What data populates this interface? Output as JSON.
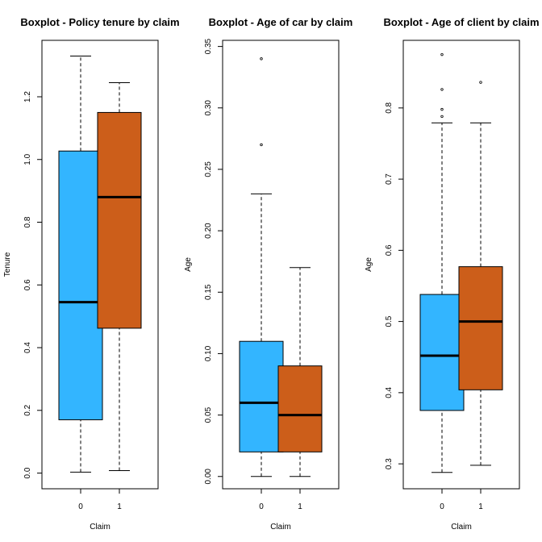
{
  "chart_data": [
    {
      "type": "boxplot",
      "title": "Boxplot - Policy tenure by claim",
      "xlabel": "Claim",
      "ylabel": "Tenure",
      "categories": [
        "0",
        "1"
      ],
      "ylim": [
        -0.05,
        1.38
      ],
      "yticks": [
        0.0,
        0.2,
        0.4,
        0.6,
        0.8,
        1.0,
        1.2
      ],
      "ytick_labels": [
        "0.0",
        "0.2",
        "0.4",
        "0.6",
        "0.8",
        "1.0",
        "1.2"
      ],
      "boxes": [
        {
          "category": "0",
          "color": "#33b5ff",
          "whisker_low": 0.003,
          "q1": 0.17,
          "median": 0.545,
          "q3": 1.027,
          "whisker_high": 1.33,
          "outliers": []
        },
        {
          "category": "1",
          "color": "#cc5e1a",
          "whisker_low": 0.008,
          "q1": 0.462,
          "median": 0.88,
          "q3": 1.15,
          "whisker_high": 1.245,
          "outliers": []
        }
      ]
    },
    {
      "type": "boxplot",
      "title": "Boxplot - Age of car by claim",
      "xlabel": "Claim",
      "ylabel": "Age",
      "categories": [
        "0",
        "1"
      ],
      "ylim": [
        -0.01,
        0.355
      ],
      "yticks": [
        0.0,
        0.05,
        0.1,
        0.15,
        0.2,
        0.25,
        0.3,
        0.35
      ],
      "ytick_labels": [
        "0.00",
        "0.05",
        "0.10",
        "0.15",
        "0.20",
        "0.25",
        "0.30",
        "0.35"
      ],
      "boxes": [
        {
          "category": "0",
          "color": "#33b5ff",
          "whisker_low": 0.0,
          "q1": 0.02,
          "median": 0.06,
          "q3": 0.11,
          "whisker_high": 0.23,
          "outliers": [
            0.27,
            0.34
          ]
        },
        {
          "category": "1",
          "color": "#cc5e1a",
          "whisker_low": 0.0,
          "q1": 0.02,
          "median": 0.05,
          "q3": 0.09,
          "whisker_high": 0.17,
          "outliers": []
        }
      ]
    },
    {
      "type": "boxplot",
      "title": "Boxplot - Age of client by claim",
      "xlabel": "Claim",
      "ylabel": "Age",
      "categories": [
        "0",
        "1"
      ],
      "ylim": [
        0.265,
        0.895
      ],
      "yticks": [
        0.3,
        0.4,
        0.5,
        0.6,
        0.7,
        0.8
      ],
      "ytick_labels": [
        "0.3",
        "0.4",
        "0.5",
        "0.6",
        "0.7",
        "0.8"
      ],
      "boxes": [
        {
          "category": "0",
          "color": "#33b5ff",
          "whisker_low": 0.288,
          "q1": 0.375,
          "median": 0.452,
          "q3": 0.538,
          "whisker_high": 0.779,
          "outliers": [
            0.788,
            0.798,
            0.826,
            0.875
          ]
        },
        {
          "category": "1",
          "color": "#cc5e1a",
          "whisker_low": 0.298,
          "q1": 0.404,
          "median": 0.5,
          "q3": 0.577,
          "whisker_high": 0.779,
          "outliers": [
            0.836
          ]
        }
      ]
    }
  ]
}
